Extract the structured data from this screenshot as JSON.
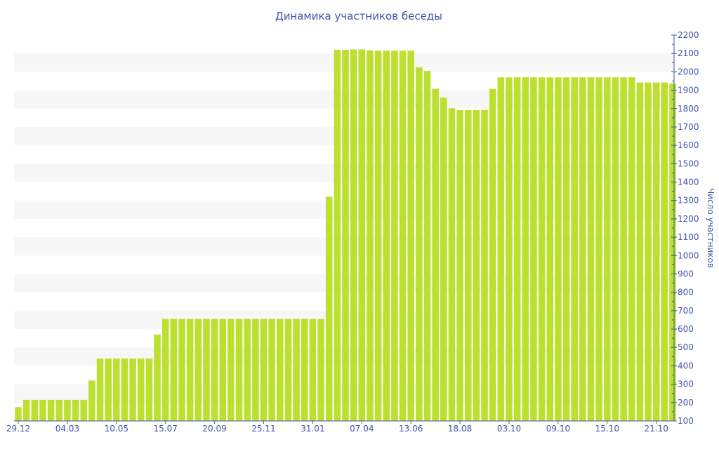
{
  "chart_data": {
    "type": "bar",
    "title": "Динамика участников беседы",
    "xlabel": "",
    "ylabel": "Число участников",
    "ylim": [
      100,
      2200
    ],
    "y_ticks": [
      100,
      200,
      300,
      400,
      500,
      600,
      700,
      800,
      900,
      1000,
      1100,
      1200,
      1300,
      1400,
      1500,
      1600,
      1700,
      1800,
      1900,
      2000,
      2100,
      2200
    ],
    "y_axis_side": "right",
    "grid": "alternating horizontal bands",
    "x_tick_labels": [
      "29.12",
      "04.03",
      "10.05",
      "15.07",
      "20.09",
      "25.11",
      "31.01",
      "07.04",
      "13.06",
      "18.08",
      "03.10",
      "09.10",
      "15.10",
      "21.10"
    ],
    "x_tick_every": 6,
    "values": [
      175,
      215,
      215,
      215,
      215,
      215,
      215,
      215,
      215,
      320,
      440,
      440,
      440,
      440,
      440,
      440,
      440,
      570,
      655,
      655,
      655,
      655,
      655,
      655,
      655,
      655,
      655,
      655,
      655,
      655,
      655,
      655,
      655,
      655,
      655,
      655,
      655,
      655,
      1320,
      2120,
      2120,
      2122,
      2122,
      2117,
      2115,
      2115,
      2115,
      2115,
      2115,
      2025,
      2005,
      1908,
      1860,
      1802,
      1792,
      1792,
      1792,
      1792,
      1907,
      1970,
      1970,
      1970,
      1970,
      1970,
      1970,
      1970,
      1970,
      1970,
      1970,
      1970,
      1970,
      1970,
      1970,
      1970,
      1970,
      1970,
      1942,
      1942,
      1942,
      1942,
      1937
    ],
    "colors": {
      "bar": "#bde02f",
      "axis": "#3f56a6",
      "band": "#f7f7f7"
    }
  }
}
